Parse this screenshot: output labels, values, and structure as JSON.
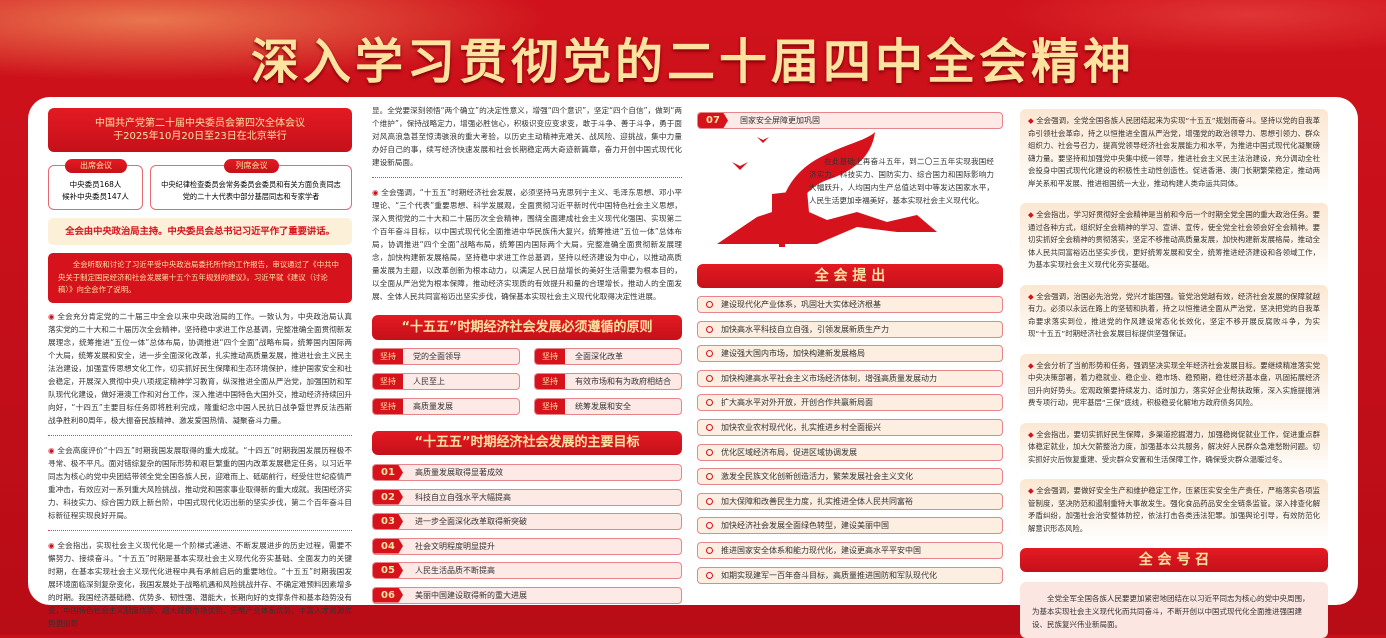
{
  "title": "深入学习贯彻党的二十届四中全会精神",
  "col1": {
    "header_line1": "中国共产党第二十届中央委员会第四次全体会议",
    "header_line2": "于2025年10月20日至23日在北京举行",
    "attend": {
      "label": "出席会议",
      "line1": "中央委员168人",
      "line2": "候补中央委员147人"
    },
    "observe": {
      "label": "列席会议",
      "line1": "中央纪律检查委员会常务委员会委员和有关方面负责同志",
      "line2": "党的二十大代表中部分基层同志和专家学者"
    },
    "highlight": "全会由中央政治局主持。中央委员会总书记习近平作了重要讲话。",
    "report": "全会听取和讨论了习近平受中央政治局委托所作的工作报告，审议通过了《中共中央关于制定国民经济和社会发展第十五个五年规划的建议》。习近平就《建议（讨论稿）》向全会作了说明。",
    "paras": [
      "全会充分肯定党的二十届三中全会以来中央政治局的工作。一致认为，中央政治局认真落实党的二十大和二十届历次全会精神，坚持稳中求进工作总基调，完整准确全面贯彻新发展理念，统筹推进“五位一体”总体布局，协调推进“四个全面”战略布局，统筹国内国际两个大局，统筹发展和安全，进一步全面深化改革，扎实推动高质量发展，推进社会主义民主法治建设，加强宣传思想文化工作，切实抓好民生保障和生态环境保护，维护国家安全和社会稳定，开展深入贯彻中央八项规定精神学习教育，纵深推进全面从严治党，加强国防和军队现代化建设，做好港澳工作和对台工作，深入推进中国特色大国外交，推动经济持续回升向好，“十四五”主要目标任务即将胜利完成，隆重纪念中国人民抗日战争暨世界反法西斯战争胜利80周年，极大振奋民族精神、激发爱国热情、凝聚奋斗力量。",
      "全会高度评价“十四五”时期我国发展取得的重大成就。“十四五”时期我国发展历程极不寻常、极不平凡。面对错综复杂的国际形势和艰巨繁重的国内改革发展稳定任务，以习近平同志为核心的党中央团结带领全党全国各族人民，迎难而上、砥砺前行，经受住世纪疫情严重冲击，有效应对一系列重大风险挑战，推动党和国家事业取得新的重大成就。我国经济实力、科技实力、综合国力跃上新台阶，中国式现代化迈出新的坚实步伐，第二个百年奋斗目标新征程实现良好开局。",
      "全会指出，实现社会主义现代化是一个阶梯式递进、不断发展进步的历史过程，需要不懈努力、接续奋斗。“十五五”时期是基本实现社会主义现代化夯实基础、全面发力的关键时期，在基本实现社会主义现代化进程中具有承前启后的重要地位。“十五五”时期我国发展环境面临深刻复杂变化，我国发展处于战略机遇和风险挑战并存、不确定难预料因素增多的时期。我国经济基础稳、优势多、韧性强、潜能大，长期向好的支撑条件和基本趋势没有变，中国特色社会主义制度优势、超大规模市场优势、完整产业体系优势、丰富人才资源优势更加彰"
    ]
  },
  "col2": {
    "cont": "显。全党要深刻领悟“两个确立”的决定性意义，增强“四个意识”，坚定“四个自信”，做到“两个维护”，保持战略定力，增强必胜信心，积极识变应变求变，敢于斗争、善于斗争，勇于面对风高浪急甚至惊涛骇浪的重大考验，以历史主动精神克难关、战风险、迎挑战，集中力量办好自己的事，续写经济快速发展和社会长期稳定两大奇迹新篇章，奋力开创中国式现代化建设新局面。",
    "para": "全会强调，“十五五”时期经济社会发展，必须坚持马克思列宁主义、毛泽东思想、邓小平理论、“三个代表”重要思想、科学发展观，全面贯彻习近平新时代中国特色社会主义思想，深入贯彻党的二十大和二十届历次全会精神，围绕全面建成社会主义现代化强国、实现第二个百年奋斗目标，以中国式现代化全面推进中华民族伟大复兴，统筹推进“五位一体”总体布局，协调推进“四个全面”战略布局，统筹国内国际两个大局，完整准确全面贯彻新发展理念，加快构建新发展格局，坚持稳中求进工作总基调，坚持以经济建设为中心，以推动高质量发展为主题，以改革创新为根本动力，以满足人民日益增长的美好生活需要为根本目的，以全面从严治党为根本保障，推动经济实现质的有效提升和量的合理增长，推动人的全面发展、全体人民共同富裕迈出坚实步伐，确保基本实现社会主义现代化取得决定性进展。",
    "principles_title": "“十五五”时期经济社会发展必须遵循的原则",
    "principle_tag": "坚持",
    "principles": [
      "党的全面领导",
      "全面深化改革",
      "人民至上",
      "有效市场和有为政府相结合",
      "高质量发展",
      "统筹发展和安全"
    ],
    "goals_title": "“十五五”时期经济社会发展的主要目标",
    "goals": [
      {
        "n": "01",
        "t": "高质量发展取得显著成效"
      },
      {
        "n": "02",
        "t": "科技自立自强水平大幅提高"
      },
      {
        "n": "03",
        "t": "进一步全面深化改革取得新突破"
      },
      {
        "n": "04",
        "t": "社会文明程度明显提升"
      },
      {
        "n": "05",
        "t": "人民生活品质不断提高"
      },
      {
        "n": "06",
        "t": "美丽中国建设取得新的重大进展"
      }
    ]
  },
  "col3": {
    "goal7": {
      "n": "07",
      "t": "国家安全屏障更加巩固"
    },
    "vision": "在此基础上再奋斗五年，到二〇三五年实现我国经济实力、科技实力、国防实力、综合国力和国际影响力大幅跃升，人均国内生产总值达到中等发达国家水平，人民生活更加幸福美好，基本实现社会主义现代化。",
    "proposals_title": "全 会 提 出",
    "proposals": [
      "建设现代化产业体系，巩固壮大实体经济根基",
      "加快高水平科技自立自强，引领发展新质生产力",
      "建设强大国内市场，加快构建新发展格局",
      "加快构建高水平社会主义市场经济体制，增强高质量发展动力",
      "扩大高水平对外开放，开创合作共赢新局面",
      "加快农业农村现代化，扎实推进乡村全面振兴",
      "优化区域经济布局，促进区域协调发展",
      "激发全民族文化创新创造活力，繁荣发展社会主义文化",
      "加大保障和改善民生力度，扎实推进全体人民共同富裕",
      "加快经济社会发展全面绿色转型，建设美丽中国",
      "推进国家安全体系和能力现代化，建设更高水平平安中国",
      "如期实现建军一百年奋斗目标，高质量推进国防和军队现代化"
    ]
  },
  "col4": {
    "cards": [
      "全会强调，全党全国各族人民团结起来为实现“十五五”规划而奋斗。坚持以党的自我革命引领社会革命，持之以恒推进全面从严治党，增强党的政治领导力、思想引领力、群众组织力、社会号召力，提高党领导经济社会发展能力和水平，为推进中国式现代化凝聚磅礴力量。要坚持和加强党中央集中统一领导，推进社会主义民主法治建设，充分调动全社会投身中国式现代化建设的积极性主动性创造性。促进香港、澳门长期繁荣稳定，推动两岸关系和平发展、推进祖国统一大业，推动构建人类命运共同体。",
      "全会指出，学习好贯彻好全会精神是当前和今后一个时期全党全国的重大政治任务。要通过各种方式，组织好全会精神的学习、宣讲、宣传，使全党全社会领会好全会精神。要切实抓好全会精神的贯彻落实，坚定不移推动高质量发展，加快构建新发展格局，推动全体人民共同富裕迈出坚实步伐，更好统筹发展和安全，统筹推进经济建设和各领域工作，为基本实现社会主义现代化夯实基础。",
      "全会强调，治国必先治党，党兴才能国强。管党治党越有效，经济社会发展的保障就越有力。必须以永远在路上的坚韧和执着，持之以恒推进全面从严治党，坚决把党的自我革命要求落实到位，推进党的作风建设常态化长效化，坚定不移开展反腐败斗争，为实现“十五五”时期经济社会发展目标提供坚强保证。",
      "全会分析了当前形势和任务，强调坚决实现全年经济社会发展目标。要继续精准落实党中央决策部署，着力稳就业、稳企业、稳市场、稳预期，稳住经济基本盘，巩固拓展经济回升向好势头。宏观政策要持续发力、适时加力，落实好企业帮扶政策，深入实施提振消费专项行动，兜牢基层“三保”底线，积极稳妥化解地方政府债务风险。",
      "全会指出，要切实抓好民生保障，多渠道挖掘潜力，加强稳岗促就业工作，促进重点群体稳定就业，加大欠薪整治力度，加强基本公共服务，解决好人民群众急难愁盼问题。切实抓好灾后恢复重建、受灾群众安置和生活保障工作，确保受灾群众温暖过冬。",
      "全会强调，要做好安全生产和维护稳定工作，压紧压实安全生产责任，严格落实各项监管制度，坚决防范和遏制重特大事故发生。强化食品药品安全全链条监管。深入排查化解矛盾纠纷，加强社会治安整体防控，依法打击各类违法犯罪。加强舆论引导，有效防范化解意识形态风险。"
    ],
    "call_title": "全 会 号 召",
    "call": "全党全军全国各族人民要更加紧密地团结在以习近平同志为核心的党中央周围，为基本实现社会主义现代化而共同奋斗，不断开创以中国式现代化全面推进强国建设、民族复兴伟业新局面。"
  },
  "colors": {
    "red": "#d6121c",
    "gold": "#fde3a0",
    "cream": "#fbe7d2"
  }
}
